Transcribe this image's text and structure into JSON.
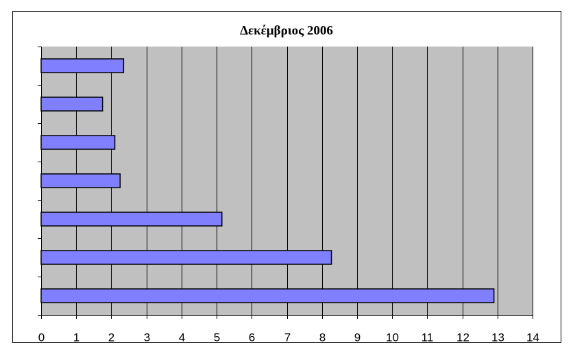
{
  "chart_data": {
    "type": "bar",
    "orientation": "horizontal",
    "title": "Δεκέμβριος 2006",
    "categories": [
      null,
      null,
      null,
      null,
      null,
      null,
      null
    ],
    "values": [
      2.35,
      1.75,
      2.1,
      2.25,
      5.15,
      8.27,
      12.9
    ],
    "color": "#8080ff",
    "plot_background": "#c0c0c0",
    "xlim": [
      0,
      14
    ],
    "xticks": [
      0,
      1,
      2,
      3,
      4,
      5,
      6,
      7,
      8,
      9,
      10,
      11,
      12,
      13,
      14
    ],
    "grid": true
  }
}
